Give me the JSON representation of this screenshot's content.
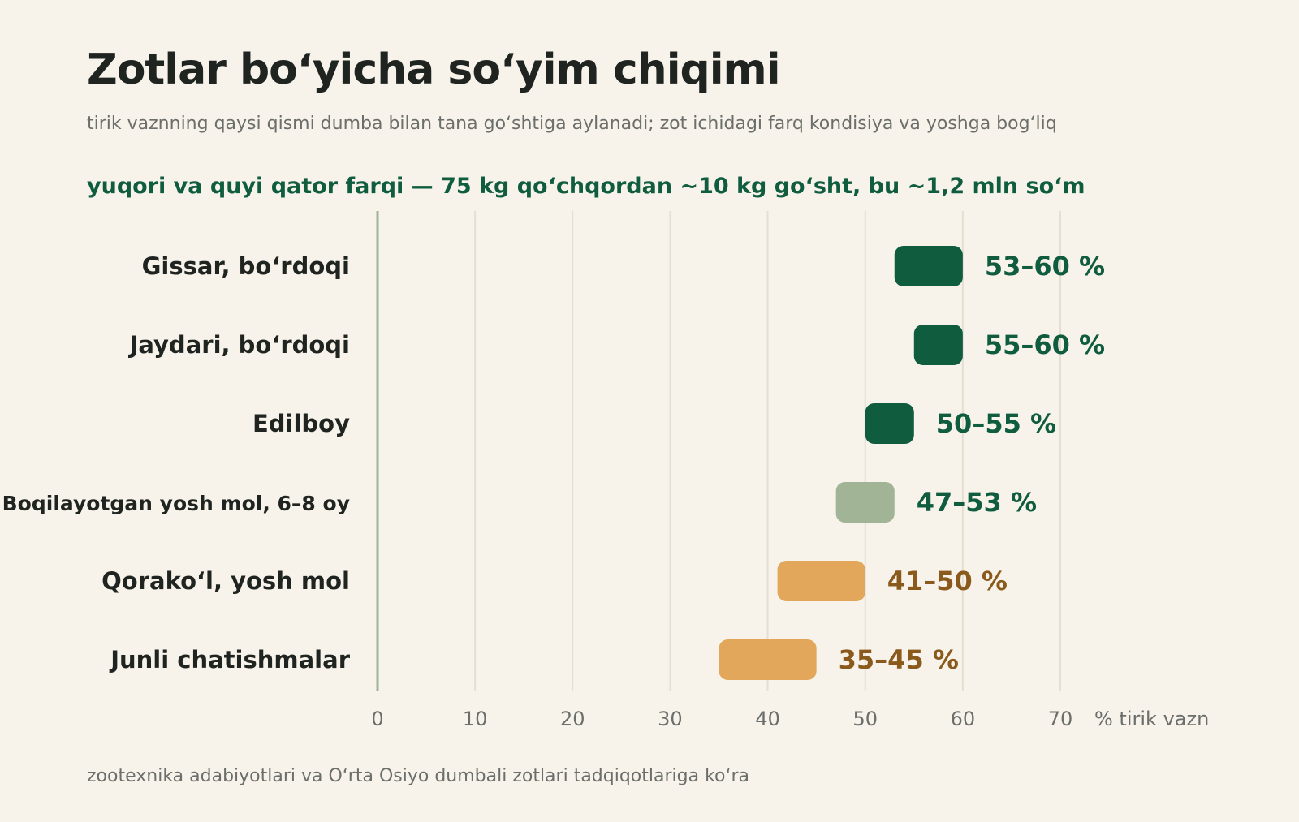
{
  "header": {
    "title": "Zotlar bo‘yicha so‘yim chiqimi",
    "subtitle": "tirik vaznning qaysi qismi dumba bilan tana go‘shtiga aylanadi; zot ichidagi farq kondisiya va yoshga bog‘liq",
    "callout": "yuqori va quyi qator farqi — 75 kg qo‘chqordan ~10 kg go‘sht, bu ~1,2 mln so‘m"
  },
  "footer": {
    "source": "zootexnika adabiyotlari va O‘rta Osiyo dumbali zotlari tadqiqotlariga ko‘ra"
  },
  "chart_data": {
    "type": "bar",
    "orientation": "horizontal-range",
    "categories": [
      "Gissar, bo‘rdoqi",
      "Jaydari, bo‘rdoqi",
      "Edilboy",
      "Boqilayotgan yosh mol, 6–8 oy",
      "Qorako‘l, yosh mol",
      "Junli chatishmalar"
    ],
    "ranges": [
      [
        53,
        60
      ],
      [
        55,
        60
      ],
      [
        50,
        55
      ],
      [
        47,
        53
      ],
      [
        41,
        50
      ],
      [
        35,
        45
      ]
    ],
    "value_labels": [
      "53–60 %",
      "55–60 %",
      "50–55 %",
      "47–53 %",
      "41–50 %",
      "35–45 %"
    ],
    "bar_colors": [
      "#0f5c3f",
      "#0f5c3f",
      "#0f5c3f",
      "#a1b496",
      "#e3a75c",
      "#e3a75c"
    ],
    "label_colors": [
      "#0f5c3f",
      "#0f5c3f",
      "#0f5c3f",
      "#0f5c3f",
      "#8a5a1c",
      "#8a5a1c"
    ],
    "x_ticks": [
      "0",
      "10",
      "20",
      "30",
      "40",
      "50",
      "60",
      "70"
    ],
    "xlim": [
      0,
      70
    ],
    "xlabel": "% tirik vazn",
    "grid": true
  }
}
